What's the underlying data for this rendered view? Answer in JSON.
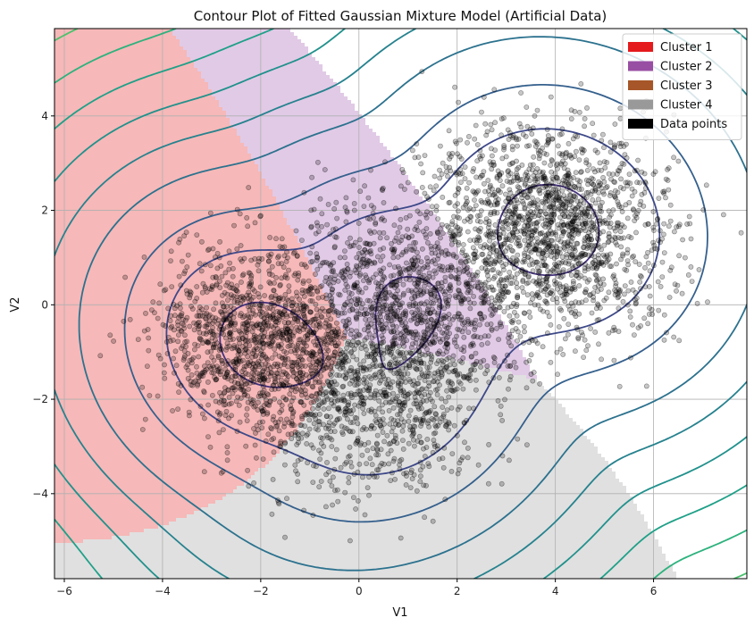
{
  "chart_data": {
    "type": "scatter",
    "title": "Contour Plot of Fitted Gaussian Mixture Model (Artificial Data)",
    "xlabel": "V1",
    "ylabel": "V2",
    "xlim": [
      -6.2,
      7.9
    ],
    "ylim": [
      -5.8,
      5.85
    ],
    "xticks": [
      -6,
      -4,
      -2,
      0,
      2,
      4,
      6
    ],
    "yticks": [
      -4,
      -2,
      0,
      2,
      4
    ],
    "xtick_labels": [
      "−6",
      "−4",
      "−2",
      "0",
      "2",
      "4",
      "6"
    ],
    "ytick_labels": [
      "−4",
      "−2",
      "0",
      "2",
      "4"
    ],
    "grid": true,
    "legend_position": "top-right",
    "legend": [
      {
        "label": "Cluster 1",
        "color": "#e41a1c"
      },
      {
        "label": "Cluster 2",
        "color": "#984ea3"
      },
      {
        "label": "Cluster 3",
        "color": "#a65628"
      },
      {
        "label": "Cluster 4",
        "color": "#999999"
      },
      {
        "label": "Data points",
        "color": "#000000"
      }
    ],
    "region_fills": {
      "cluster1": "#f6b8b8",
      "cluster2": "#e1cae6",
      "cluster3": "#e6cbbd",
      "cluster4": "#e0e0e0"
    },
    "components": [
      {
        "name": "Cluster 1",
        "mean": [
          -2.0,
          -0.8
        ],
        "sd": [
          1.0,
          1.0
        ],
        "rho": -0.1,
        "n": 1300
      },
      {
        "name": "Cluster 2",
        "mean": [
          1.0,
          0.2
        ],
        "sd": [
          1.1,
          1.0
        ],
        "rho": -0.15,
        "n": 1000
      },
      {
        "name": "Cluster 3",
        "mean": [
          3.9,
          1.6
        ],
        "sd": [
          1.15,
          1.1
        ],
        "rho": -0.05,
        "n": 1700
      },
      {
        "name": "Cluster 4",
        "mean": [
          0.5,
          -1.9
        ],
        "sd": [
          1.15,
          1.05
        ],
        "rho": 0.15,
        "n": 900
      }
    ],
    "contour_levels": [
      -3.5,
      -5,
      -7,
      -10,
      -13,
      -16.5,
      -20.5,
      -25,
      -30,
      -35.5,
      -41.5,
      -48
    ],
    "contour_colors": [
      "#46337e",
      "#3e4989",
      "#35608d",
      "#2c728e",
      "#26828e",
      "#21918c",
      "#1fa088",
      "#2db27d",
      "#4ac16d",
      "#73d056",
      "#a0da39",
      "#d0e11c"
    ]
  }
}
